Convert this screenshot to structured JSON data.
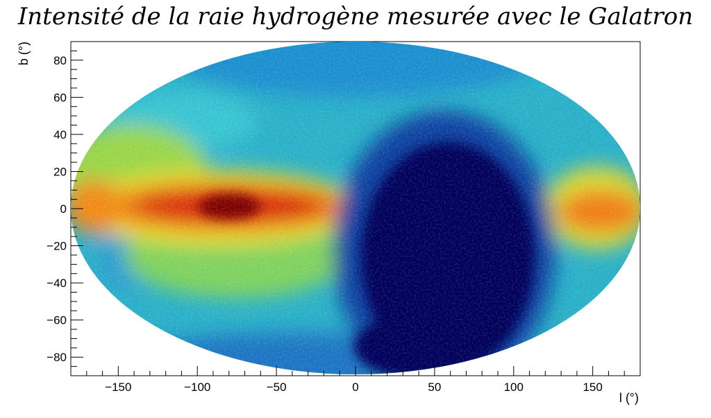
{
  "chart_data": {
    "type": "heatmap",
    "title": "Intensité de la raie hydrogène mesurée avec le Galatron",
    "xlabel": "l (°)",
    "ylabel": "b (°)",
    "projection": "aitoff",
    "xlim": [
      -180,
      180
    ],
    "ylim": [
      -90,
      90
    ],
    "x_ticks": [
      -150,
      -100,
      -50,
      0,
      50,
      100,
      150
    ],
    "x_tick_labels": [
      "−150",
      "−100",
      "−50",
      "0",
      "50",
      "100",
      "150"
    ],
    "y_ticks": [
      -80,
      -60,
      -40,
      -20,
      0,
      20,
      40,
      60,
      80
    ],
    "y_tick_labels": [
      "−80",
      "−60",
      "−40",
      "−20",
      "0",
      "20",
      "40",
      "60",
      "80"
    ],
    "colormap": [
      "#00005a",
      "#0a3fa0",
      "#1880d0",
      "#2ab0c8",
      "#3cc6a8",
      "#9ad64a",
      "#e6dc2a",
      "#f08a14",
      "#d82a10",
      "#7a0000"
    ],
    "grid": false,
    "features": [
      {
        "name": "galactic-plane-band",
        "l_range": [
          -180,
          -20
        ],
        "b_range": [
          -10,
          12
        ],
        "level": 0.82
      },
      {
        "name": "peak",
        "l": -85,
        "b": 2,
        "level": 0.98
      },
      {
        "name": "east-band",
        "l_range": [
          125,
          180
        ],
        "b_range": [
          -10,
          10
        ],
        "level": 0.75
      },
      {
        "name": "low-region",
        "l": 60,
        "b": -25,
        "level": 0.0
      },
      {
        "name": "cool-patch-north",
        "l": -125,
        "b": 45,
        "level": 0.35
      },
      {
        "name": "cool-patch-south",
        "l": -140,
        "b": -20,
        "level": 0.38
      }
    ]
  }
}
